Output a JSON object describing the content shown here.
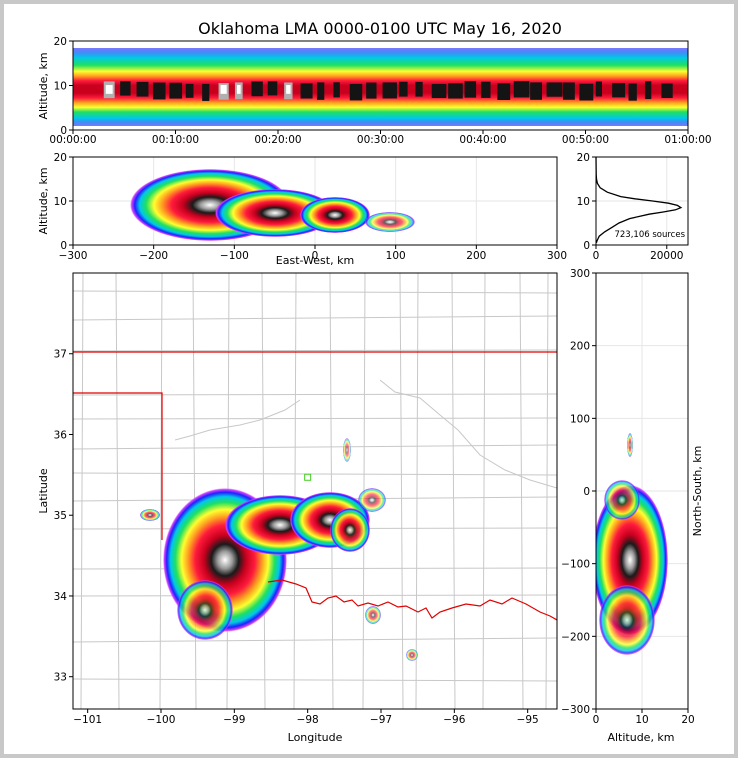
{
  "chart_data": {
    "type": "heatmap",
    "title": "Oklahoma LMA 0000-0100 UTC May 16, 2020",
    "panels": {
      "time_height": {
        "ylabel": "Altitude, km",
        "ylim": [
          0,
          20
        ],
        "y_ticks": [
          "0",
          "10",
          "20"
        ],
        "x_ticks": [
          "00:00:00",
          "00:10:00",
          "00:20:00",
          "00:30:00",
          "00:40:00",
          "00:50:00",
          "01:00:00"
        ],
        "xlim_minutes": [
          0,
          60
        ],
        "band_center_km": 9,
        "core_altitude_km": [
          7,
          11
        ]
      },
      "east_west": {
        "xlabel": "East-West, km",
        "ylabel": "Altitude, km",
        "xlim": [
          -300,
          300
        ],
        "ylim": [
          0,
          20
        ],
        "x_ticks": [
          "−300",
          "−200",
          "−100",
          "0",
          "100",
          "200",
          "300"
        ],
        "y_ticks": [
          "0",
          "10",
          "20"
        ]
      },
      "histogram": {
        "x_ticks": [
          "0",
          "20000"
        ],
        "y_ticks": [
          "0",
          "10",
          "20"
        ],
        "xlim": [
          0,
          26000
        ],
        "ylim": [
          0,
          20
        ],
        "peak_altitude_km": 8.5,
        "peak_count": 24000,
        "annotation": "723,106 sources",
        "profile": [
          [
            0.5,
            100
          ],
          [
            1,
            300
          ],
          [
            2,
            900
          ],
          [
            3,
            2500
          ],
          [
            4,
            4500
          ],
          [
            5,
            6500
          ],
          [
            6,
            9500
          ],
          [
            7,
            15000
          ],
          [
            7.5,
            19000
          ],
          [
            8,
            22500
          ],
          [
            8.5,
            24000
          ],
          [
            9,
            23000
          ],
          [
            9.5,
            20500
          ],
          [
            10,
            16000
          ],
          [
            10.5,
            11000
          ],
          [
            11,
            7000
          ],
          [
            12,
            3200
          ],
          [
            13,
            1200
          ],
          [
            14,
            400
          ],
          [
            15,
            150
          ],
          [
            16,
            60
          ],
          [
            18,
            20
          ],
          [
            20,
            5
          ]
        ]
      },
      "plan_view": {
        "xlabel": "Longitude",
        "ylabel": "Latitude",
        "xlim": [
          -101.2,
          -94.6
        ],
        "ylim": [
          32.6,
          38
        ],
        "x_ticks": [
          "−101",
          "−100",
          "−99",
          "−98",
          "−97",
          "−96",
          "−95"
        ],
        "y_ticks": [
          "33",
          "34",
          "35",
          "36",
          "37"
        ],
        "station_marker": {
          "lon": -98.0,
          "lat": 35.47
        }
      },
      "north_south": {
        "xlabel": "Altitude, km",
        "ylabel": "North-South, km",
        "xlim": [
          0,
          20
        ],
        "ylim": [
          -300,
          300
        ],
        "x_ticks": [
          "0",
          "10",
          "20"
        ],
        "y_ticks": [
          "−300",
          "−200",
          "−100",
          "0",
          "100",
          "200",
          "300"
        ]
      }
    }
  }
}
